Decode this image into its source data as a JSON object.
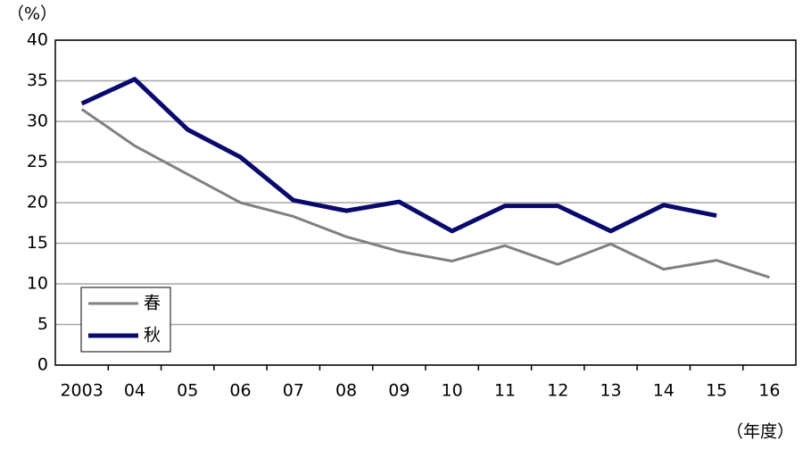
{
  "chart_data": {
    "type": "line",
    "y_label": "（%）",
    "x_label": "（年度）",
    "categories": [
      "2003",
      "04",
      "05",
      "06",
      "07",
      "08",
      "09",
      "10",
      "11",
      "12",
      "13",
      "14",
      "15",
      "16"
    ],
    "series": [
      {
        "name": "春",
        "color": "#808080",
        "width": 3,
        "values": [
          31.5,
          27,
          23.5,
          20,
          18.3,
          15.8,
          14,
          12.8,
          14.7,
          12.4,
          14.9,
          11.8,
          12.9,
          10.8
        ]
      },
      {
        "name": "秋",
        "color": "#0a0a6e",
        "width": 5,
        "values": [
          32.2,
          35.2,
          29,
          25.6,
          20.3,
          19,
          20.1,
          16.5,
          19.6,
          19.6,
          16.5,
          19.7,
          18.4,
          null
        ]
      }
    ],
    "ylim": [
      0,
      40
    ],
    "yticks": [
      0,
      5,
      10,
      15,
      20,
      25,
      30,
      35,
      40
    ],
    "grid": true,
    "legend": "lower left"
  }
}
